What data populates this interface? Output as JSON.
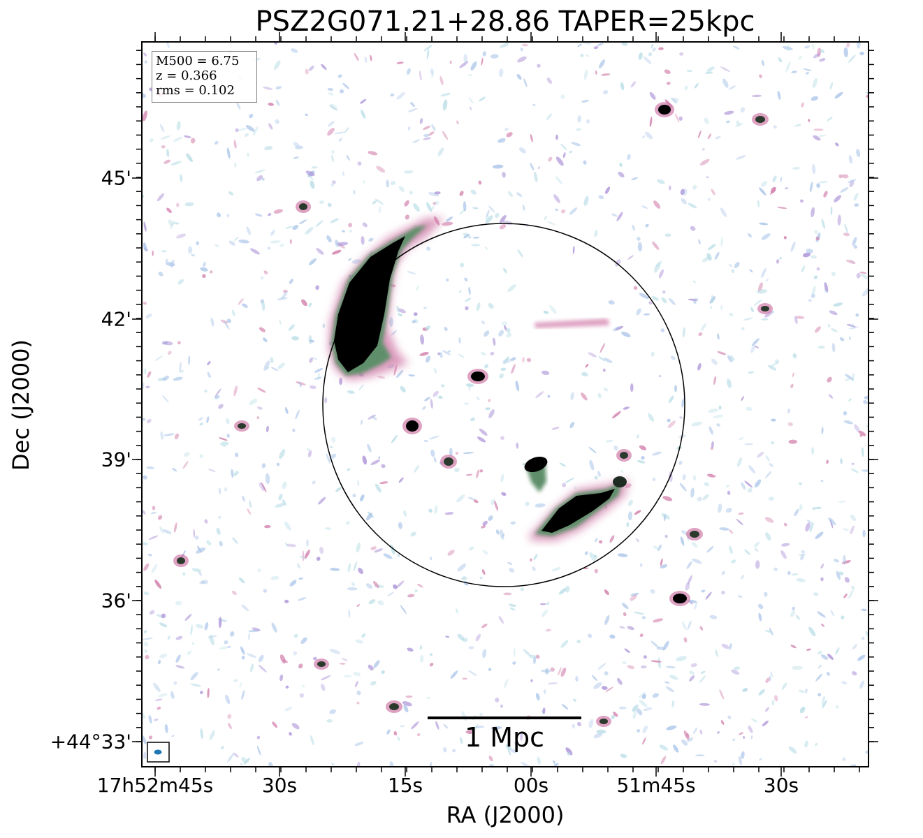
{
  "figure": {
    "title": "PSZ2G071.21+28.86 TAPER=25kpc",
    "xlabel": "RA (J2000)",
    "ylabel": "Dec (J2000)",
    "x_ticks": [
      "17h52m45s",
      "30s",
      "15s",
      "00s",
      "51m45s",
      "30s"
    ],
    "y_ticks": [
      "45'",
      "42'",
      "39'",
      "36'",
      "+44°33'"
    ],
    "info": {
      "m500": "M500 = 6.75",
      "z": "z = 0.366",
      "rms": "rms = 0.102"
    },
    "scalebar_label": "1 Mpc",
    "colors": {
      "noise_light": "#a9c4e8",
      "noise_cyan": "#b8dde6",
      "noise_violet": "#a98fd6",
      "emission_pink": "#d07aa8",
      "emission_green": "#5e8f6a",
      "emission_core": "#000000",
      "beam": "#1f77b4"
    },
    "icons": [
      "beam-ellipse-icon"
    ]
  }
}
